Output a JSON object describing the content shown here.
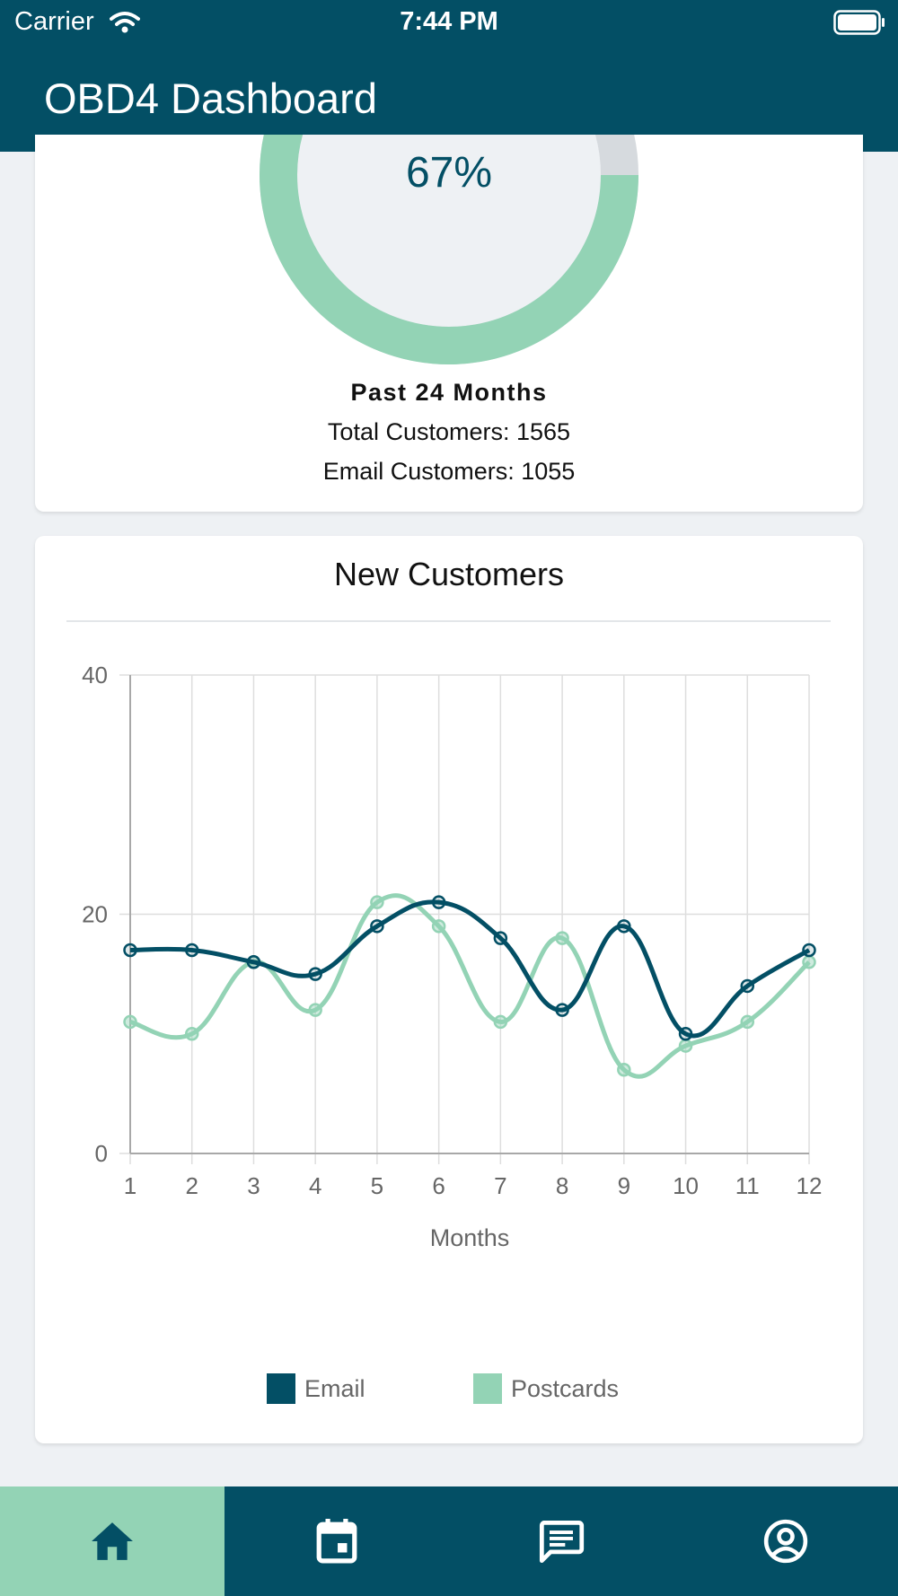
{
  "status_bar": {
    "carrier": "Carrier",
    "time": "7:44 PM"
  },
  "app": {
    "title": "OBD4 Dashboard"
  },
  "colors": {
    "primary": "#034f65",
    "accent": "#93d3b5",
    "track": "#d6dade"
  },
  "summary_card": {
    "percent_value": 0.67,
    "percent_label": "67%",
    "period": "Past 24 Months",
    "total_customers": "Total Customers: 1565",
    "email_customers": "Email Customers: 1055"
  },
  "chart_card": {
    "title": "New Customers"
  },
  "chart_data": {
    "type": "line",
    "title": "New Customers",
    "xlabel": "Months",
    "ylabel": "",
    "x": [
      1,
      2,
      3,
      4,
      5,
      6,
      7,
      8,
      9,
      10,
      11,
      12
    ],
    "ylim": [
      0,
      40
    ],
    "yticks": [
      0,
      20,
      40
    ],
    "grid": true,
    "legend": "bottom",
    "series": [
      {
        "name": "Email",
        "color": "#034f65",
        "values": [
          17,
          17,
          16,
          15,
          19,
          21,
          18,
          12,
          19,
          10,
          14,
          17
        ]
      },
      {
        "name": "Postcards",
        "color": "#93d3b5",
        "values": [
          11,
          10,
          16,
          12,
          21,
          19,
          11,
          18,
          7,
          9,
          11,
          16
        ]
      }
    ]
  },
  "tab_bar": {
    "tabs": [
      {
        "icon": "home-icon",
        "active": true
      },
      {
        "icon": "calendar-icon",
        "active": false
      },
      {
        "icon": "message-icon",
        "active": false
      },
      {
        "icon": "account-icon",
        "active": false
      }
    ]
  }
}
